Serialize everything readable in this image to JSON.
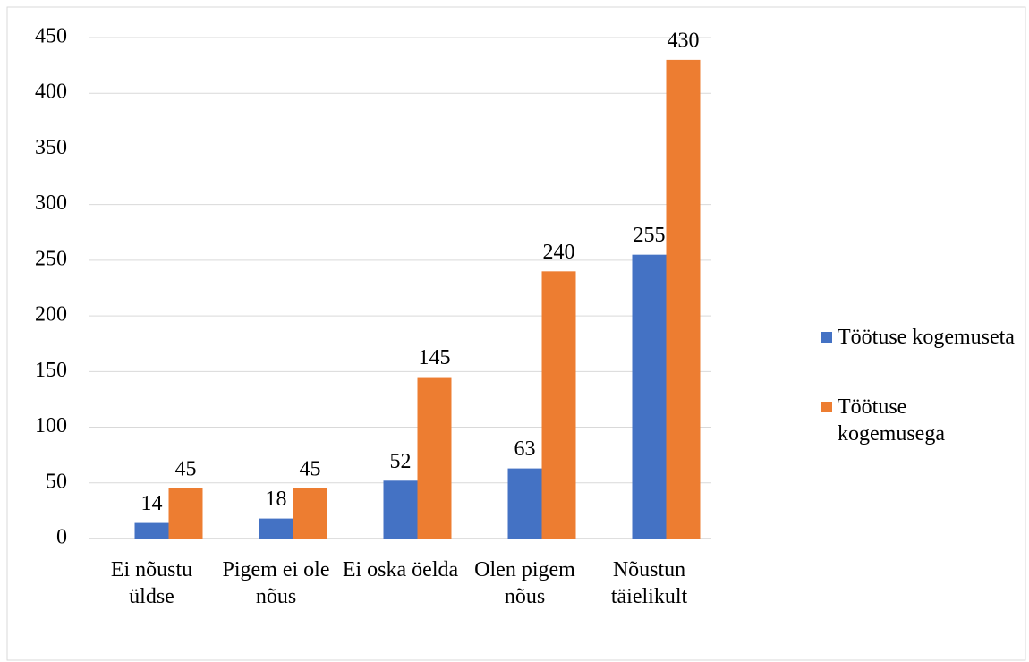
{
  "chart_data": {
    "type": "bar",
    "categories": [
      "Ei nõustu üldse",
      "Pigem ei ole nõus",
      "Ei oska öelda",
      "Olen pigem nõus",
      "Nõustun täielikult"
    ],
    "series": [
      {
        "name": "Töötuse kogemuseta",
        "color": "#4472c4",
        "values": [
          14,
          18,
          52,
          63,
          255
        ]
      },
      {
        "name": "Töötuse kogemusega",
        "color": "#ed7d31",
        "values": [
          45,
          45,
          145,
          240,
          430
        ]
      }
    ],
    "ylim": [
      0,
      450
    ],
    "yticks": [
      0,
      50,
      100,
      150,
      200,
      250,
      300,
      350,
      400,
      450
    ],
    "grid": true,
    "legend": "right"
  }
}
